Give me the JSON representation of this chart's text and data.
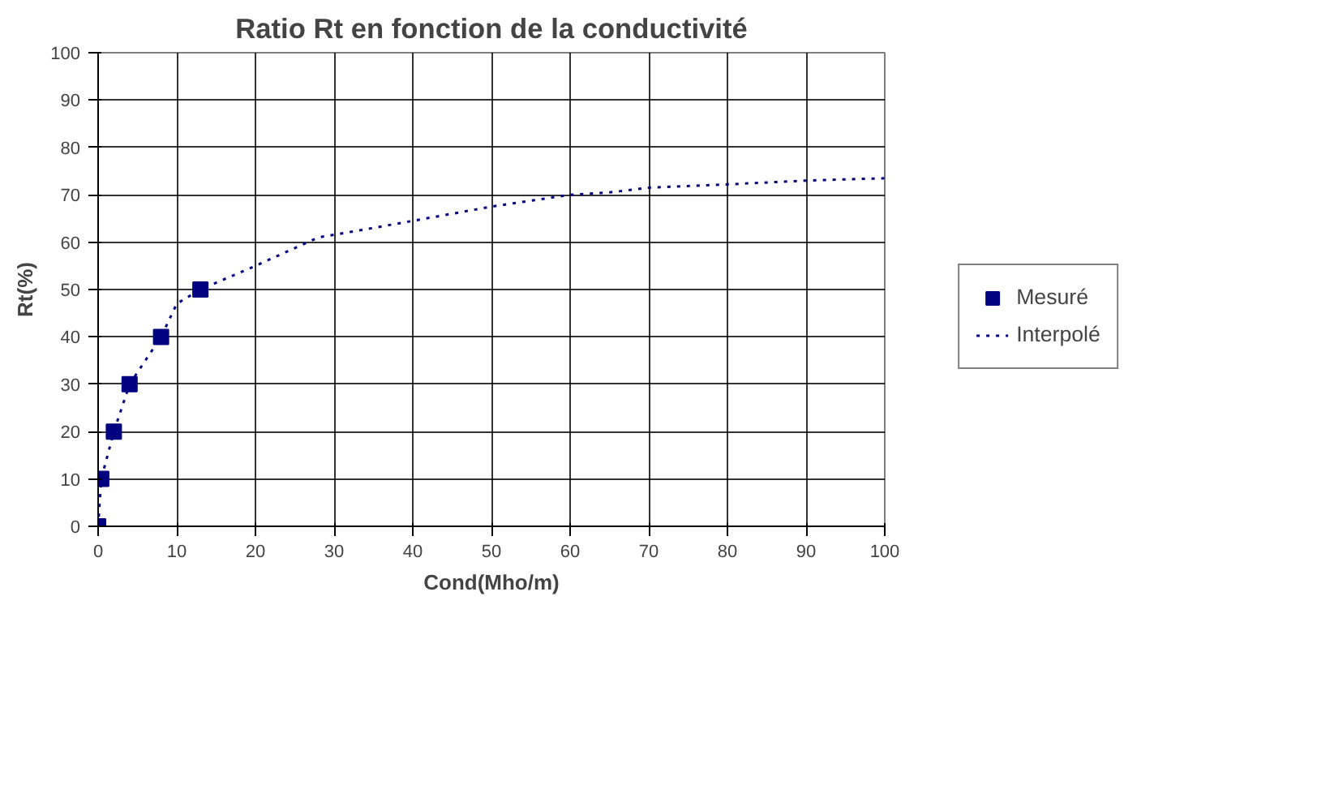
{
  "chart_data": {
    "type": "scatter",
    "title": "Ratio Rt en fonction de la conductivité",
    "xlabel": "Cond(Mho/m)",
    "ylabel": "Rt(%)",
    "xlim": [
      0,
      100
    ],
    "ylim": [
      0,
      100
    ],
    "xticks": [
      0,
      10,
      20,
      30,
      40,
      50,
      60,
      70,
      80,
      90,
      100
    ],
    "yticks": [
      0,
      10,
      20,
      30,
      40,
      50,
      60,
      70,
      80,
      90,
      100
    ],
    "grid": true,
    "legend": "right",
    "series": [
      {
        "name": "Mesuré",
        "marker": "square",
        "color": "#000080",
        "x": [
          0,
          0.4,
          2,
          4,
          8,
          13
        ],
        "values": [
          0,
          10,
          20,
          30,
          40,
          50
        ]
      },
      {
        "name": "Interpolé",
        "type": "line",
        "line_style": "dotted",
        "color": "#000080",
        "x": [
          0,
          0.4,
          2,
          4,
          8,
          10,
          13,
          20,
          28,
          35,
          40,
          50,
          60,
          65,
          70,
          80,
          90,
          100
        ],
        "values": [
          0,
          10,
          20,
          30,
          40,
          47,
          50,
          55,
          61,
          63,
          64.5,
          67.5,
          70,
          70.5,
          71.5,
          72.2,
          73,
          73.5
        ]
      }
    ]
  }
}
